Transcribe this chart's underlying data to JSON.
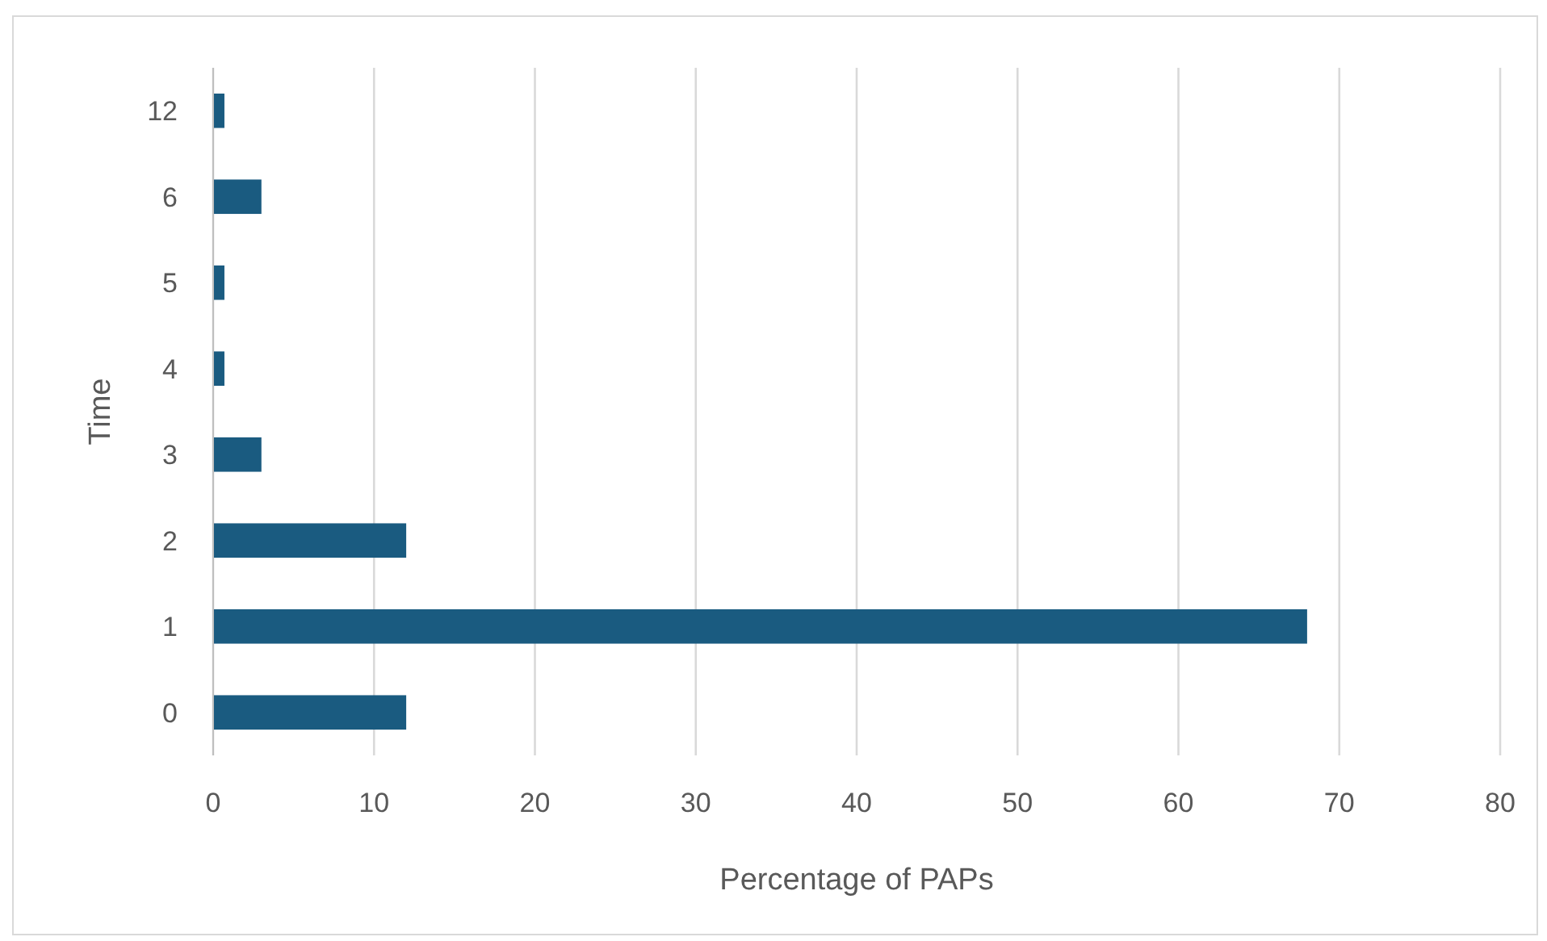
{
  "chart_data": {
    "type": "bar",
    "orientation": "horizontal",
    "xlabel": "Percentage of PAPs",
    "ylabel": "Time",
    "categories": [
      "12",
      "6",
      "5",
      "4",
      "3",
      "2",
      "1",
      "0"
    ],
    "values": [
      0.7,
      3,
      0.7,
      0.7,
      3,
      12,
      68,
      12
    ],
    "color": "#1a5b80",
    "xlim": [
      0,
      80
    ],
    "xticks": [
      0,
      10,
      20,
      30,
      40,
      50,
      60,
      70,
      80
    ],
    "grid": "x"
  }
}
